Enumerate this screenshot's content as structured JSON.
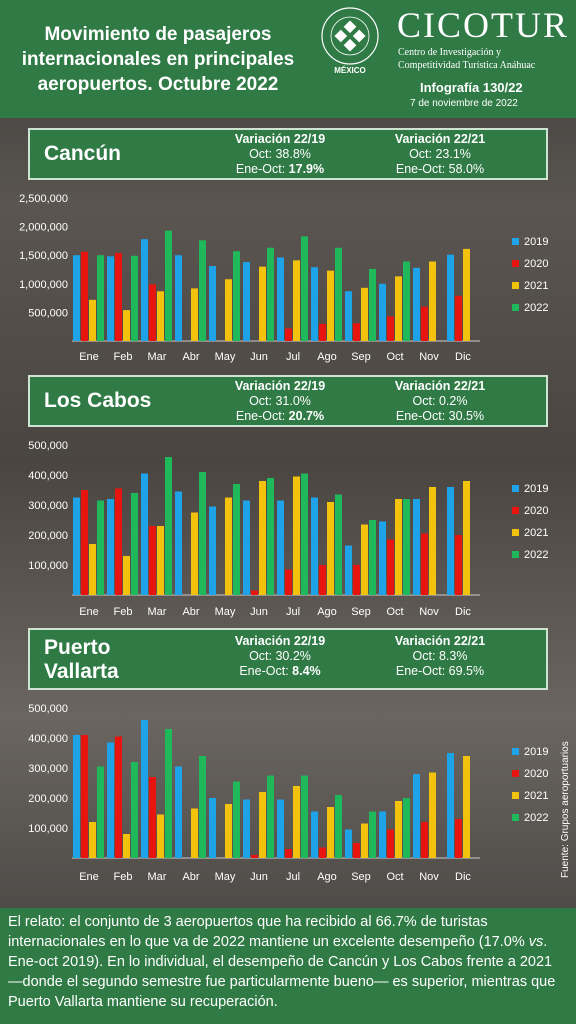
{
  "header": {
    "title_lines": [
      "Movimiento de pasajeros",
      "internacionales en principales",
      "aeropuertos. Octubre 2022"
    ],
    "university_ring_text": "UNIVERSIDAD ANÁHUAC",
    "university_motto": "VINCE IN BONO MALUM",
    "mexico": "MÉXICO",
    "brand": "CICOTUR",
    "brand_sub_1": "Centro de Investigación y",
    "brand_sub_2": "Competitividad Turística Anáhuac",
    "infografia": "Infografía 130/22",
    "date": "7 de noviembre de 2022"
  },
  "sections": [
    {
      "city": "Cancún",
      "v1_head": "Variación 22/19",
      "v1_oct": "Oct: 38.8%",
      "v1_ene_label": "Ene-Oct: ",
      "v1_ene_val": "17.9%",
      "v2_head": "Variación 22/21",
      "v2_oct": "Oct: 23.1%",
      "v2_ene": "Ene-Oct: 58.0%"
    },
    {
      "city": "Los Cabos",
      "v1_head": "Variación 22/19",
      "v1_oct": "Oct: 31.0%",
      "v1_ene_label": "Ene-Oct: ",
      "v1_ene_val": "20.7%",
      "v2_head": "Variación 22/21",
      "v2_oct": "Oct: 0.2%",
      "v2_ene": "Ene-Oct: 30.5%"
    },
    {
      "city_line1": "Puerto",
      "city_line2": "Vallarta",
      "v1_head": "Variación 22/19",
      "v1_oct": "Oct: 30.2%",
      "v1_ene_label": "Ene-Oct: ",
      "v1_ene_val": "8.4%",
      "v2_head": "Variación 22/21",
      "v2_oct": "Oct: 8.3%",
      "v2_ene": "Ene-Oct: 69.5%"
    }
  ],
  "colors": {
    "2019": "#1fa3e8",
    "2020": "#e8140f",
    "2021": "#f2c20c",
    "2022": "#1fb85a"
  },
  "chart_data": [
    {
      "type": "bar",
      "title": "Cancún",
      "categories": [
        "Ene",
        "Feb",
        "Mar",
        "Abr",
        "May",
        "Jun",
        "Jul",
        "Ago",
        "Sep",
        "Oct",
        "Nov",
        "Dic"
      ],
      "ylim": [
        0,
        2500000
      ],
      "yticks": [
        "500,000",
        "1,000,000",
        "1,500,000",
        "2,000,000",
        "2,500,000"
      ],
      "series": [
        {
          "name": "2019",
          "values": [
            1500000,
            1480000,
            1780000,
            1500000,
            1310000,
            1380000,
            1460000,
            1290000,
            870000,
            1000000,
            1280000,
            1510000
          ]
        },
        {
          "name": "2020",
          "values": [
            1560000,
            1540000,
            990000,
            0,
            0,
            0,
            220000,
            300000,
            310000,
            430000,
            600000,
            790000
          ]
        },
        {
          "name": "2021",
          "values": [
            720000,
            540000,
            870000,
            920000,
            1080000,
            1300000,
            1410000,
            1230000,
            930000,
            1130000,
            1390000,
            1610000
          ]
        },
        {
          "name": "2022",
          "values": [
            1500000,
            1490000,
            1930000,
            1760000,
            1570000,
            1630000,
            1830000,
            1630000,
            1260000,
            1390000,
            0,
            0
          ]
        }
      ]
    },
    {
      "type": "bar",
      "title": "Los Cabos",
      "categories": [
        "Ene",
        "Feb",
        "Mar",
        "Abr",
        "May",
        "Jun",
        "Jul",
        "Ago",
        "Sep",
        "Oct",
        "Nov",
        "Dic"
      ],
      "ylim": [
        0,
        500000
      ],
      "yticks": [
        "100,000",
        "200,000",
        "300,000",
        "400,000",
        "500,000"
      ],
      "series": [
        {
          "name": "2019",
          "values": [
            325000,
            320000,
            405000,
            345000,
            295000,
            315000,
            315000,
            325000,
            165000,
            245000,
            320000,
            360000
          ]
        },
        {
          "name": "2020",
          "values": [
            350000,
            355000,
            230000,
            0,
            0,
            15000,
            85000,
            100000,
            100000,
            185000,
            205000,
            200000
          ]
        },
        {
          "name": "2021",
          "values": [
            170000,
            130000,
            230000,
            275000,
            325000,
            380000,
            395000,
            310000,
            235000,
            320000,
            360000,
            380000
          ]
        },
        {
          "name": "2022",
          "values": [
            315000,
            340000,
            460000,
            410000,
            370000,
            390000,
            405000,
            335000,
            250000,
            320000,
            0,
            0
          ]
        }
      ]
    },
    {
      "type": "bar",
      "title": "Puerto Vallarta",
      "categories": [
        "Ene",
        "Feb",
        "Mar",
        "Abr",
        "May",
        "Jun",
        "Jul",
        "Ago",
        "Sep",
        "Oct",
        "Nov",
        "Dic"
      ],
      "ylim": [
        0,
        500000
      ],
      "yticks": [
        "100,000",
        "200,000",
        "300,000",
        "400,000",
        "500,000"
      ],
      "series": [
        {
          "name": "2019",
          "values": [
            410000,
            385000,
            460000,
            305000,
            200000,
            195000,
            195000,
            155000,
            95000,
            155000,
            280000,
            350000
          ]
        },
        {
          "name": "2020",
          "values": [
            410000,
            405000,
            270000,
            0,
            0,
            10000,
            30000,
            35000,
            50000,
            95000,
            120000,
            130000
          ]
        },
        {
          "name": "2021",
          "values": [
            120000,
            80000,
            145000,
            165000,
            180000,
            220000,
            240000,
            170000,
            115000,
            190000,
            285000,
            340000
          ]
        },
        {
          "name": "2022",
          "values": [
            305000,
            320000,
            430000,
            340000,
            255000,
            275000,
            275000,
            210000,
            155000,
            200000,
            0,
            0
          ]
        }
      ]
    }
  ],
  "source": "Fuente: Grupos aeroportuarios",
  "footer": {
    "p1": "El relato: el conjunto de 3 aeropuertos que ha recibido al 66.7% de turistas internacionales en lo que va de 2022 mantiene un excelente desempeño (17.0% ",
    "vs": "vs",
    "p2": ". Ene-oct 2019).  En lo individual, el desempeño de Cancún y Los Cabos frente a 2021 —donde el segundo semestre fue particularmente bueno— es superior, mientras que Puerto Vallarta mantiene su recuperación."
  }
}
